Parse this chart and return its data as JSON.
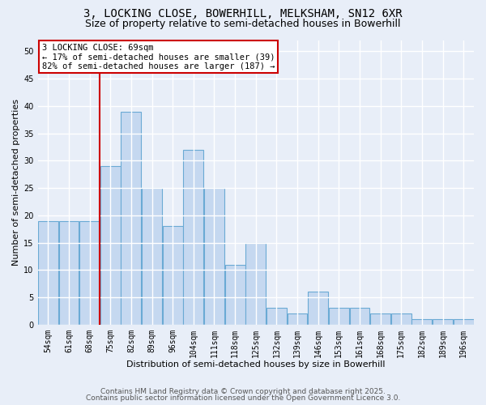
{
  "title_line1": "3, LOCKING CLOSE, BOWERHILL, MELKSHAM, SN12 6XR",
  "title_line2": "Size of property relative to semi-detached houses in Bowerhill",
  "xlabel": "Distribution of semi-detached houses by size in Bowerhill",
  "ylabel": "Number of semi-detached properties",
  "categories": [
    "54sqm",
    "61sqm",
    "68sqm",
    "75sqm",
    "82sqm",
    "89sqm",
    "96sqm",
    "104sqm",
    "111sqm",
    "118sqm",
    "125sqm",
    "132sqm",
    "139sqm",
    "146sqm",
    "153sqm",
    "161sqm",
    "168sqm",
    "175sqm",
    "182sqm",
    "189sqm",
    "196sqm"
  ],
  "values": [
    19,
    19,
    19,
    29,
    39,
    25,
    18,
    32,
    25,
    11,
    15,
    3,
    2,
    6,
    3,
    3,
    2,
    2,
    1,
    1,
    1
  ],
  "bar_color": "#c5d8f0",
  "bar_edge_color": "#6aaad4",
  "highlight_index": 2,
  "highlight_color": "#cc0000",
  "ylim": [
    0,
    52
  ],
  "yticks": [
    0,
    5,
    10,
    15,
    20,
    25,
    30,
    35,
    40,
    45,
    50
  ],
  "annotation_text": "3 LOCKING CLOSE: 69sqm\n← 17% of semi-detached houses are smaller (39)\n82% of semi-detached houses are larger (187) →",
  "footer_line1": "Contains HM Land Registry data © Crown copyright and database right 2025.",
  "footer_line2": "Contains public sector information licensed under the Open Government Licence 3.0.",
  "background_color": "#e8eef8",
  "grid_color": "white",
  "title_fontsize": 10,
  "subtitle_fontsize": 9,
  "axis_label_fontsize": 8,
  "tick_fontsize": 7,
  "annotation_fontsize": 7.5,
  "footer_fontsize": 6.5
}
